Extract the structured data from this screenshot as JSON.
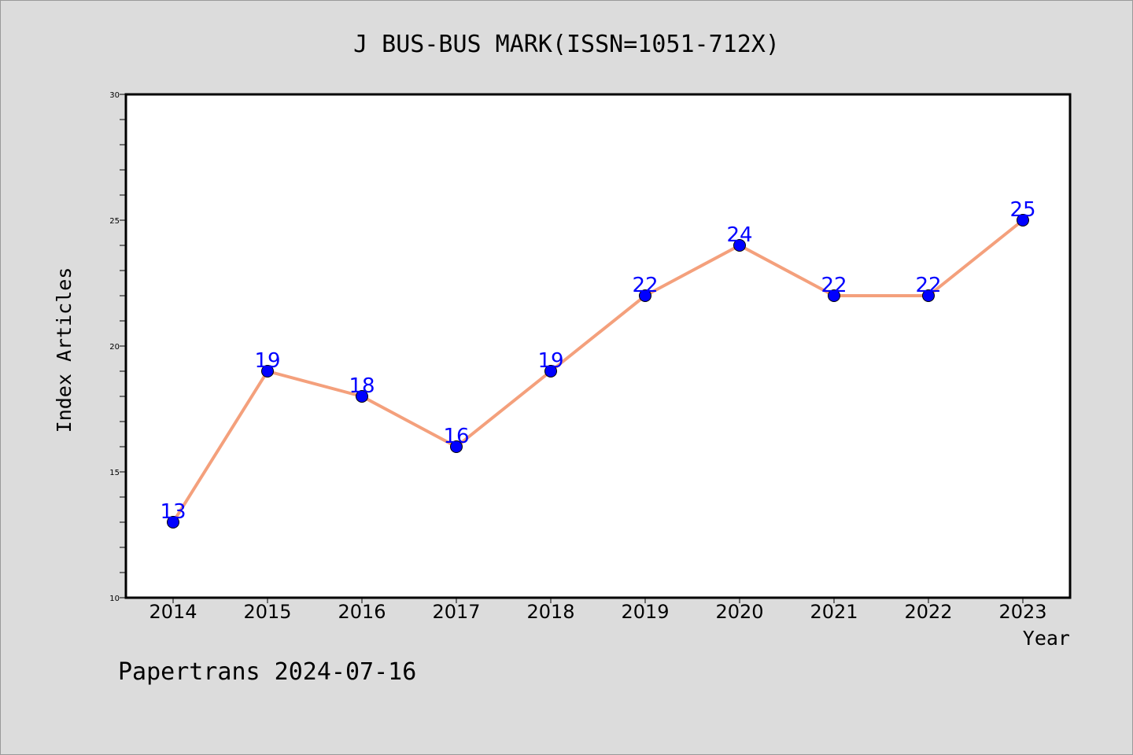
{
  "chart_data": {
    "type": "line",
    "title": "J BUS-BUS MARK(ISSN=1051-712X)",
    "xlabel": "Year",
    "ylabel": "Index Articles",
    "categories": [
      "2014",
      "2015",
      "2016",
      "2017",
      "2018",
      "2019",
      "2020",
      "2021",
      "2022",
      "2023"
    ],
    "series": [
      {
        "values": [
          13,
          19,
          18,
          16,
          19,
          22,
          24,
          22,
          22,
          25
        ],
        "line_color": "#f4a07c",
        "marker_color": "#0000ff"
      }
    ],
    "ylim": [
      10,
      30
    ],
    "yticks": [
      10,
      15,
      20,
      25,
      30
    ],
    "grid": false,
    "data_labels": true
  },
  "footer": {
    "text": "Papertrans 2024-07-16"
  },
  "colors": {
    "background": "#dcdcdc",
    "plot_background": "#ffffff",
    "label_color": "#0000ff"
  }
}
